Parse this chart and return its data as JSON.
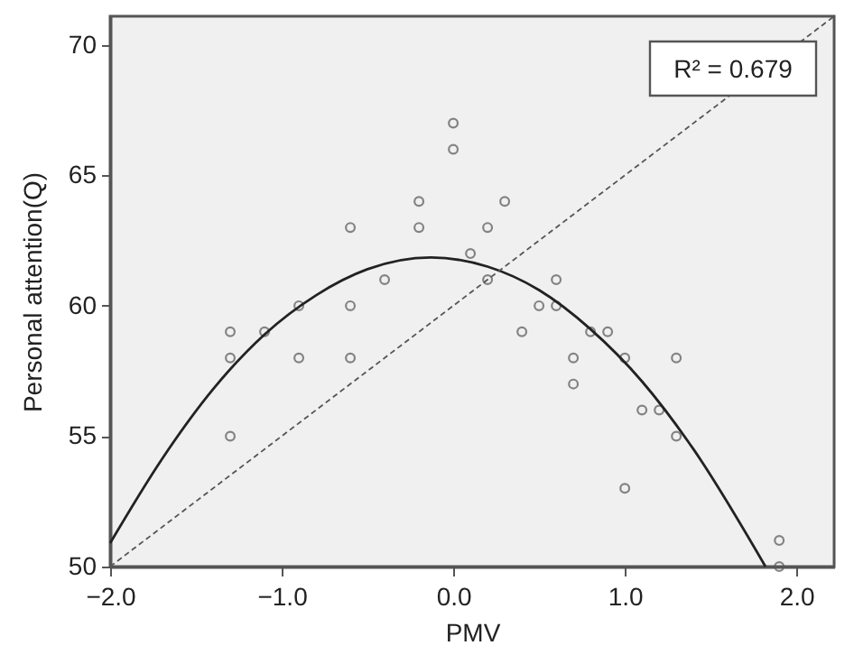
{
  "chart_data": {
    "type": "scatter",
    "xlabel": "PMV",
    "ylabel": "Personal attention(Q)",
    "annotations": [
      "R² = 0.679"
    ],
    "xlim": [
      -2.0,
      2.22
    ],
    "ylim": [
      50,
      71.1
    ],
    "xticks": [
      {
        "value": -2,
        "label": "−2.0"
      },
      {
        "value": -1,
        "label": "−1.0"
      },
      {
        "value": 0,
        "label": "0.0"
      },
      {
        "value": 1,
        "label": "1.0"
      },
      {
        "value": 2,
        "label": "2.0"
      }
    ],
    "yticks": [
      50,
      55,
      60,
      65,
      70
    ],
    "series": [
      {
        "marker": "circle",
        "color": "#555555",
        "x": [
          -1.3,
          -1.3,
          -1.3,
          -1.1,
          -0.9,
          -0.9,
          -0.6,
          -0.6,
          -0.6,
          -0.4,
          -0.2,
          -0.2,
          0.0,
          0.0,
          0.1,
          0.2,
          0.2,
          0.3,
          0.4,
          0.5,
          0.6,
          0.6,
          0.7,
          0.7,
          0.8,
          0.9,
          1.0,
          1.0,
          1.1,
          1.2,
          1.3,
          1.3,
          1.9,
          1.9
        ],
        "values": [
          59,
          58,
          55,
          59,
          60,
          58,
          63,
          60,
          58,
          61,
          64,
          63,
          67,
          66,
          62,
          63,
          61,
          64,
          59,
          60,
          61,
          60,
          58,
          57,
          59,
          59,
          58,
          53,
          56,
          56,
          58,
          55,
          51,
          50
        ]
      },
      {
        "type": "line",
        "line_style": "solid",
        "color": "#222222",
        "x": [
          -2.0,
          -1.7,
          -1.4,
          -1.1,
          -0.8,
          -0.5,
          -0.13,
          0.2,
          0.5,
          0.8,
          1.1,
          1.4,
          1.82
        ],
        "values": [
          50.9,
          54.1,
          56.8,
          58.9,
          60.4,
          61.4,
          61.85,
          61.5,
          60.6,
          59.1,
          57.1,
          54.5,
          50.0
        ]
      },
      {
        "type": "line",
        "line_style": "dashed",
        "color": "#555555",
        "x": [
          -2.0,
          2.22
        ],
        "values": [
          50,
          71.1
        ]
      }
    ]
  }
}
